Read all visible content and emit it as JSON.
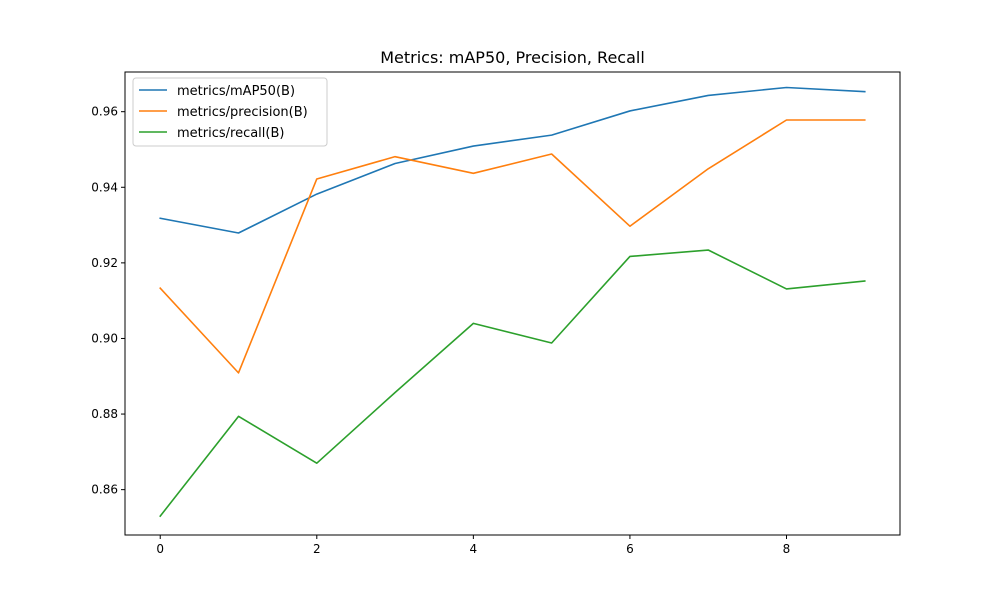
{
  "chart_data": {
    "type": "line",
    "title": "Metrics: mAP50, Precision, Recall",
    "xlabel": "",
    "ylabel": "",
    "xlim": [
      -0.45,
      9.45
    ],
    "ylim": [
      0.848,
      0.9705
    ],
    "x_ticks": [
      0,
      2,
      4,
      6,
      8
    ],
    "x_tick_labels": [
      "0",
      "2",
      "4",
      "6",
      "8"
    ],
    "y_ticks": [
      0.86,
      0.88,
      0.9,
      0.92,
      0.94,
      0.96
    ],
    "y_tick_labels": [
      "0.86",
      "0.88",
      "0.90",
      "0.92",
      "0.94",
      "0.96"
    ],
    "grid": false,
    "legend_position": "top-left",
    "x": [
      0,
      1,
      2,
      3,
      4,
      5,
      6,
      7,
      8,
      9
    ],
    "series": [
      {
        "name": "metrics/mAP50(B)",
        "color": "#1f77b4",
        "values": [
          0.9318,
          0.9279,
          0.9382,
          0.9463,
          0.9509,
          0.9538,
          0.9602,
          0.9643,
          0.9664,
          0.9653
        ]
      },
      {
        "name": "metrics/precision(B)",
        "color": "#ff7f0e",
        "values": [
          0.9133,
          0.8909,
          0.9422,
          0.9481,
          0.9437,
          0.9488,
          0.9297,
          0.9449,
          0.9578,
          0.9578
        ]
      },
      {
        "name": "metrics/recall(B)",
        "color": "#2ca02c",
        "values": [
          0.853,
          0.8794,
          0.867,
          0.8857,
          0.904,
          0.8988,
          0.9217,
          0.9234,
          0.9131,
          0.9152
        ]
      }
    ]
  }
}
